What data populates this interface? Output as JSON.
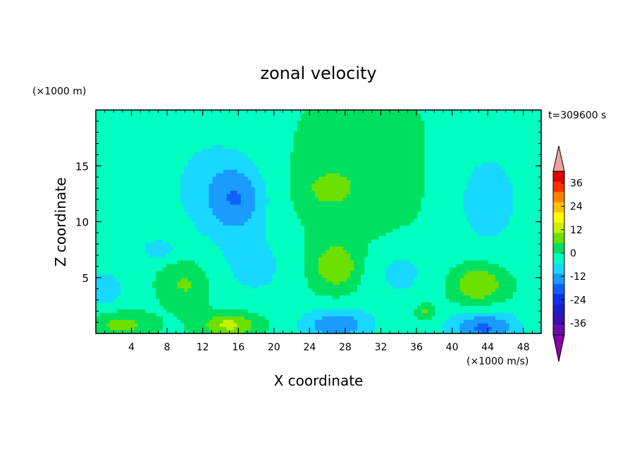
{
  "chart_data": {
    "type": "heatmap",
    "title": "zonal velocity",
    "xlabel": "X coordinate",
    "ylabel": "Z coordinate",
    "x_unit": "(×1000 m/s)",
    "y_unit": "(×1000 m)",
    "time_label": "t=309600 s",
    "xlim": [
      0,
      50
    ],
    "ylim": [
      0,
      20
    ],
    "x_ticks": [
      4,
      8,
      12,
      16,
      20,
      24,
      28,
      32,
      36,
      40,
      44,
      48
    ],
    "y_ticks": [
      5,
      10,
      15
    ],
    "colorbar": {
      "ticks": [
        36,
        24,
        12,
        0,
        -12,
        -24,
        -36
      ],
      "levels": [
        -42,
        -36,
        -30,
        -24,
        -18,
        -12,
        -6,
        0,
        6,
        12,
        18,
        24,
        30,
        36,
        42
      ],
      "colors": [
        "#6a0dad",
        "#3b0fb0",
        "#1c1cc8",
        "#1030e8",
        "#1060ff",
        "#1a9cff",
        "#18d8ff",
        "#00ffc0",
        "#00e060",
        "#6ce000",
        "#c8f000",
        "#ffff00",
        "#ffc000",
        "#ff8000",
        "#ff3000",
        "#e00000"
      ],
      "under_color": "#8a00a8",
      "over_color": "#f0a0a0"
    },
    "grid": false,
    "blobs": [
      {
        "x": 2,
        "z": 19.5,
        "sx": 4.0,
        "sz": 10.0,
        "amp": -3
      },
      {
        "x": 13,
        "z": 13,
        "sx": 5.0,
        "sz": 5.0,
        "amp": -8
      },
      {
        "x": 16,
        "z": 12,
        "sx": 3.0,
        "sz": 3.0,
        "amp": -12
      },
      {
        "x": 18,
        "z": 6,
        "sx": 4.0,
        "sz": 3.0,
        "amp": -7
      },
      {
        "x": 7,
        "z": 7.5,
        "sx": 2.0,
        "sz": 1.0,
        "amp": -8
      },
      {
        "x": 1,
        "z": 4.0,
        "sx": 2.0,
        "sz": 1.5,
        "amp": -10
      },
      {
        "x": 27,
        "z": 0.8,
        "sx": 4.0,
        "sz": 1.5,
        "amp": -16
      },
      {
        "x": 34,
        "z": 5.5,
        "sx": 4.0,
        "sz": 3.0,
        "amp": -7
      },
      {
        "x": 43.5,
        "z": 0.5,
        "sx": 4.0,
        "sz": 1.5,
        "amp": -18
      },
      {
        "x": 44,
        "z": 12,
        "sx": 5.0,
        "sz": 6.0,
        "amp": -7
      },
      {
        "x": 30,
        "z": 14,
        "sx": 7.0,
        "sz": 7.0,
        "amp": 5
      },
      {
        "x": 26,
        "z": 13,
        "sx": 2.5,
        "sz": 1.5,
        "amp": 7
      },
      {
        "x": 27,
        "z": 6,
        "sx": 2.5,
        "sz": 2.0,
        "amp": 12
      },
      {
        "x": 43,
        "z": 4.5,
        "sx": 3.0,
        "sz": 1.8,
        "amp": 14
      },
      {
        "x": 15,
        "z": 0.8,
        "sx": 3.0,
        "sz": 1.0,
        "amp": 15
      },
      {
        "x": 3,
        "z": 0.8,
        "sx": 3.0,
        "sz": 1.0,
        "amp": 10
      },
      {
        "x": 10,
        "z": 4.5,
        "sx": 2.5,
        "sz": 2.0,
        "amp": 8
      },
      {
        "x": 37,
        "z": 2,
        "sx": 1.0,
        "sz": 0.7,
        "amp": 10
      }
    ],
    "background_value": -1
  }
}
